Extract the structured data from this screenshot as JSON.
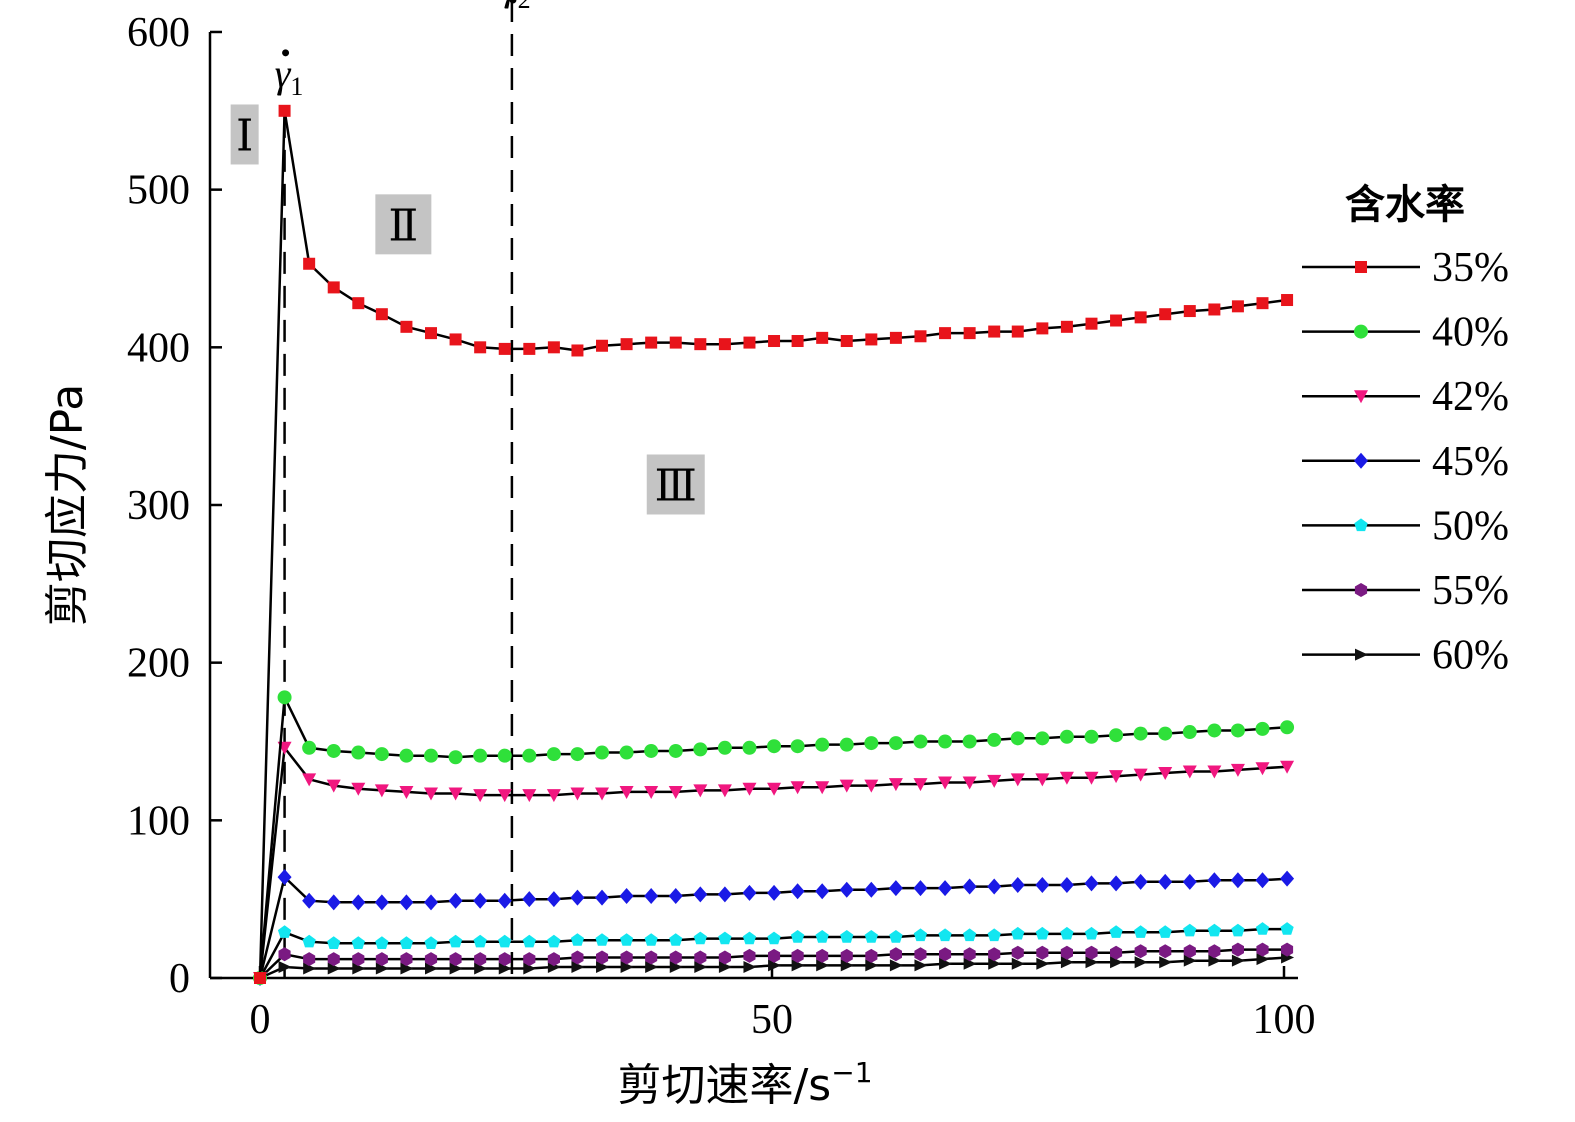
{
  "chart_data": {
    "type": "line",
    "xlabel": "剪切速率/s",
    "xlabel_sup": "−1",
    "ylabel": "剪切应力/Pa",
    "xlim": [
      -10,
      100
    ],
    "ylim": [
      0,
      600
    ],
    "xticks": [
      0,
      50,
      100
    ],
    "yticks": [
      0,
      100,
      200,
      300,
      400,
      500,
      600
    ],
    "grid": false,
    "legend": {
      "title": "含水率",
      "position": "right"
    },
    "annotations": {
      "gamma1": {
        "text": "γ",
        "sub": "1",
        "x": 2.4
      },
      "gamma2": {
        "text": "γ",
        "sub": "2",
        "x": 24.6
      },
      "regions": [
        {
          "text": "Ⅰ",
          "x": -1.5,
          "y": 535
        },
        {
          "text": "Ⅱ",
          "x": 14,
          "y": 478
        },
        {
          "text": "Ⅲ",
          "x": 40.6,
          "y": 313
        }
      ]
    },
    "series": [
      {
        "name": "35%",
        "color": "#e8141b",
        "marker": "square",
        "x": [
          0,
          2.4,
          4.8,
          7.2,
          9.6,
          11.9,
          14.3,
          16.7,
          19.1,
          21.5,
          23.9,
          26.3,
          28.7,
          31.0,
          33.4,
          35.8,
          38.2,
          40.6,
          43.0,
          45.4,
          47.8,
          50.2,
          52.5,
          54.9,
          57.3,
          59.7,
          62.1,
          64.5,
          66.9,
          69.3,
          71.7,
          74.0,
          76.4,
          78.8,
          81.2,
          83.6,
          86.0,
          88.4,
          90.8,
          93.2,
          95.5,
          97.9,
          100.3
        ],
        "y": [
          0,
          550,
          453,
          438,
          428,
          421,
          413,
          409,
          405,
          400,
          399,
          399,
          400,
          398,
          401,
          402,
          403,
          403,
          402,
          402,
          403,
          404,
          404,
          406,
          404,
          405,
          406,
          407,
          409,
          409,
          410,
          410,
          412,
          413,
          415,
          417,
          419,
          421,
          423,
          424,
          426,
          428,
          430
        ]
      },
      {
        "name": "40%",
        "color": "#2fe03a",
        "marker": "circle",
        "x": [
          0,
          2.4,
          4.8,
          7.2,
          9.6,
          11.9,
          14.3,
          16.7,
          19.1,
          21.5,
          23.9,
          26.3,
          28.7,
          31.0,
          33.4,
          35.8,
          38.2,
          40.6,
          43.0,
          45.4,
          47.8,
          50.2,
          52.5,
          54.9,
          57.3,
          59.7,
          62.1,
          64.5,
          66.9,
          69.3,
          71.7,
          74.0,
          76.4,
          78.8,
          81.2,
          83.6,
          86.0,
          88.4,
          90.8,
          93.2,
          95.5,
          97.9,
          100.3
        ],
        "y": [
          0,
          178,
          146,
          144,
          143,
          142,
          141,
          141,
          140,
          141,
          141,
          141,
          142,
          142,
          143,
          143,
          144,
          144,
          145,
          146,
          146,
          147,
          147,
          148,
          148,
          149,
          149,
          150,
          150,
          150,
          151,
          152,
          152,
          153,
          153,
          154,
          155,
          155,
          156,
          157,
          157,
          158,
          159
        ]
      },
      {
        "name": "42%",
        "color": "#f0177f",
        "marker": "triangle-down",
        "x": [
          0,
          2.4,
          4.8,
          7.2,
          9.6,
          11.9,
          14.3,
          16.7,
          19.1,
          21.5,
          23.9,
          26.3,
          28.7,
          31.0,
          33.4,
          35.8,
          38.2,
          40.6,
          43.0,
          45.4,
          47.8,
          50.2,
          52.5,
          54.9,
          57.3,
          59.7,
          62.1,
          64.5,
          66.9,
          69.3,
          71.7,
          74.0,
          76.4,
          78.8,
          81.2,
          83.6,
          86.0,
          88.4,
          90.8,
          93.2,
          95.5,
          97.9,
          100.3
        ],
        "y": [
          0,
          146,
          126,
          122,
          120,
          119,
          118,
          117,
          117,
          116,
          116,
          116,
          116,
          117,
          117,
          118,
          118,
          118,
          119,
          119,
          120,
          120,
          121,
          121,
          122,
          122,
          123,
          123,
          124,
          124,
          125,
          126,
          126,
          127,
          127,
          128,
          129,
          130,
          131,
          131,
          132,
          133,
          134
        ]
      },
      {
        "name": "45%",
        "color": "#1a1ae6",
        "marker": "diamond",
        "x": [
          0,
          2.4,
          4.8,
          7.2,
          9.6,
          11.9,
          14.3,
          16.7,
          19.1,
          21.5,
          23.9,
          26.3,
          28.7,
          31.0,
          33.4,
          35.8,
          38.2,
          40.6,
          43.0,
          45.4,
          47.8,
          50.2,
          52.5,
          54.9,
          57.3,
          59.7,
          62.1,
          64.5,
          66.9,
          69.3,
          71.7,
          74.0,
          76.4,
          78.8,
          81.2,
          83.6,
          86.0,
          88.4,
          90.8,
          93.2,
          95.5,
          97.9,
          100.3
        ],
        "y": [
          0,
          64,
          49,
          48,
          48,
          48,
          48,
          48,
          49,
          49,
          49,
          50,
          50,
          51,
          51,
          52,
          52,
          52,
          53,
          53,
          54,
          54,
          55,
          55,
          56,
          56,
          57,
          57,
          57,
          58,
          58,
          59,
          59,
          59,
          60,
          60,
          61,
          61,
          61,
          62,
          62,
          62,
          63
        ]
      },
      {
        "name": "50%",
        "color": "#12e6f0",
        "marker": "pentagon",
        "x": [
          0,
          2.4,
          4.8,
          7.2,
          9.6,
          11.9,
          14.3,
          16.7,
          19.1,
          21.5,
          23.9,
          26.3,
          28.7,
          31.0,
          33.4,
          35.8,
          38.2,
          40.6,
          43.0,
          45.4,
          47.8,
          50.2,
          52.5,
          54.9,
          57.3,
          59.7,
          62.1,
          64.5,
          66.9,
          69.3,
          71.7,
          74.0,
          76.4,
          78.8,
          81.2,
          83.6,
          86.0,
          88.4,
          90.8,
          93.2,
          95.5,
          97.9,
          100.3
        ],
        "y": [
          0,
          29,
          23,
          22,
          22,
          22,
          22,
          22,
          23,
          23,
          23,
          23,
          23,
          24,
          24,
          24,
          24,
          24,
          25,
          25,
          25,
          25,
          26,
          26,
          26,
          26,
          26,
          27,
          27,
          27,
          27,
          28,
          28,
          28,
          28,
          29,
          29,
          29,
          30,
          30,
          30,
          31,
          31
        ]
      },
      {
        "name": "55%",
        "color": "#7a1a82",
        "marker": "hexagon",
        "x": [
          0,
          2.4,
          4.8,
          7.2,
          9.6,
          11.9,
          14.3,
          16.7,
          19.1,
          21.5,
          23.9,
          26.3,
          28.7,
          31.0,
          33.4,
          35.8,
          38.2,
          40.6,
          43.0,
          45.4,
          47.8,
          50.2,
          52.5,
          54.9,
          57.3,
          59.7,
          62.1,
          64.5,
          66.9,
          69.3,
          71.7,
          74.0,
          76.4,
          78.8,
          81.2,
          83.6,
          86.0,
          88.4,
          90.8,
          93.2,
          95.5,
          97.9,
          100.3
        ],
        "y": [
          0,
          15,
          12,
          12,
          12,
          12,
          12,
          12,
          12,
          12,
          12,
          12,
          12,
          13,
          13,
          13,
          13,
          13,
          13,
          13,
          14,
          14,
          14,
          14,
          14,
          14,
          15,
          15,
          15,
          15,
          15,
          16,
          16,
          16,
          16,
          16,
          17,
          17,
          17,
          17,
          18,
          18,
          18
        ]
      },
      {
        "name": "60%",
        "color": "#111111",
        "marker": "triangle-right",
        "x": [
          0,
          2.4,
          4.8,
          7.2,
          9.6,
          11.9,
          14.3,
          16.7,
          19.1,
          21.5,
          23.9,
          26.3,
          28.7,
          31.0,
          33.4,
          35.8,
          38.2,
          40.6,
          43.0,
          45.4,
          47.8,
          50.2,
          52.5,
          54.9,
          57.3,
          59.7,
          62.1,
          64.5,
          66.9,
          69.3,
          71.7,
          74.0,
          76.4,
          78.8,
          81.2,
          83.6,
          86.0,
          88.4,
          90.8,
          93.2,
          95.5,
          97.9,
          100.3
        ],
        "y": [
          0,
          7,
          6,
          6,
          6,
          6,
          6,
          6,
          6,
          6,
          6,
          6,
          7,
          7,
          7,
          7,
          7,
          7,
          7,
          7,
          7,
          8,
          8,
          8,
          8,
          8,
          8,
          8,
          9,
          9,
          9,
          9,
          9,
          10,
          10,
          10,
          10,
          10,
          11,
          11,
          11,
          12,
          13
        ]
      }
    ]
  }
}
